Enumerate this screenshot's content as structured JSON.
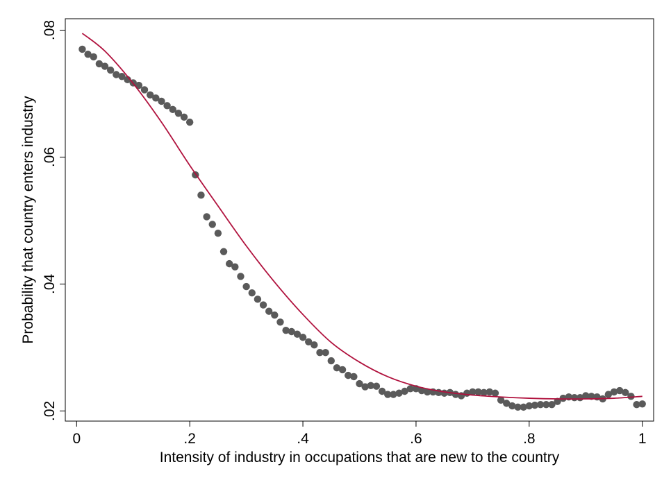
{
  "chart_data": {
    "type": "scatter",
    "title": "",
    "xlabel": "Intensity of industry in occupations that are new to the country",
    "ylabel": "Probability that country enters industry",
    "xlim": [
      -0.02,
      1.02
    ],
    "ylim": [
      0.0184,
      0.0818
    ],
    "x_ticks": [
      {
        "value": 0,
        "label": "0"
      },
      {
        "value": 0.2,
        "label": ".2"
      },
      {
        "value": 0.4,
        "label": ".4"
      },
      {
        "value": 0.6,
        "label": ".6"
      },
      {
        "value": 0.8,
        "label": ".8"
      },
      {
        "value": 1,
        "label": "1"
      }
    ],
    "y_ticks": [
      {
        "value": 0.02,
        "label": ".02"
      },
      {
        "value": 0.04,
        "label": ".04"
      },
      {
        "value": 0.06,
        "label": ".06"
      },
      {
        "value": 0.08,
        "label": ".08"
      }
    ],
    "grid": false,
    "legend": "none",
    "colors": {
      "points": "#5a5a5a",
      "fit_line": "#b0113d",
      "axis": "#000000"
    },
    "series": [
      {
        "kind": "points",
        "x": [
          0.01,
          0.02,
          0.03,
          0.04,
          0.05,
          0.06,
          0.07,
          0.08,
          0.09,
          0.1,
          0.11,
          0.12,
          0.13,
          0.14,
          0.15,
          0.16,
          0.17,
          0.18,
          0.19,
          0.2,
          0.21,
          0.22,
          0.23,
          0.24,
          0.25,
          0.26,
          0.27,
          0.28,
          0.29,
          0.3,
          0.31,
          0.32,
          0.33,
          0.34,
          0.35,
          0.36,
          0.37,
          0.38,
          0.39,
          0.4,
          0.41,
          0.42,
          0.43,
          0.44,
          0.45,
          0.46,
          0.47,
          0.48,
          0.49,
          0.5,
          0.51,
          0.52,
          0.53,
          0.54,
          0.55,
          0.56,
          0.57,
          0.58,
          0.59,
          0.6,
          0.61,
          0.62,
          0.63,
          0.64,
          0.65,
          0.66,
          0.67,
          0.68,
          0.69,
          0.7,
          0.71,
          0.72,
          0.73,
          0.74,
          0.75,
          0.76,
          0.77,
          0.78,
          0.79,
          0.8,
          0.81,
          0.82,
          0.83,
          0.84,
          0.85,
          0.86,
          0.87,
          0.88,
          0.89,
          0.9,
          0.91,
          0.92,
          0.93,
          0.94,
          0.95,
          0.96,
          0.97,
          0.98,
          0.99,
          1.0
        ],
        "y": [
          0.077,
          0.0762,
          0.0758,
          0.0747,
          0.0743,
          0.0737,
          0.073,
          0.0727,
          0.0722,
          0.0717,
          0.0713,
          0.0706,
          0.0698,
          0.0693,
          0.0688,
          0.0681,
          0.0675,
          0.0669,
          0.0663,
          0.0655,
          0.0572,
          0.054,
          0.0506,
          0.0494,
          0.048,
          0.0451,
          0.0432,
          0.0427,
          0.0412,
          0.0396,
          0.0386,
          0.0376,
          0.0367,
          0.0357,
          0.0351,
          0.034,
          0.0327,
          0.0325,
          0.0321,
          0.0316,
          0.0309,
          0.0304,
          0.0292,
          0.0292,
          0.0279,
          0.0268,
          0.0265,
          0.0256,
          0.0254,
          0.0243,
          0.0238,
          0.024,
          0.0239,
          0.0231,
          0.0226,
          0.0226,
          0.0228,
          0.0231,
          0.0235,
          0.0235,
          0.0232,
          0.023,
          0.023,
          0.0229,
          0.0228,
          0.0229,
          0.0226,
          0.0224,
          0.0228,
          0.023,
          0.023,
          0.0229,
          0.023,
          0.0228,
          0.0217,
          0.0212,
          0.0208,
          0.0206,
          0.0206,
          0.0208,
          0.0209,
          0.021,
          0.021,
          0.021,
          0.0215,
          0.022,
          0.0222,
          0.0221,
          0.0221,
          0.0224,
          0.0223,
          0.0222,
          0.0219,
          0.0226,
          0.023,
          0.0232,
          0.0229,
          0.0223,
          0.021,
          0.0211
        ]
      },
      {
        "kind": "fit-line",
        "x": [
          0.01,
          0.05,
          0.1,
          0.15,
          0.2,
          0.25,
          0.3,
          0.35,
          0.4,
          0.45,
          0.5,
          0.55,
          0.6,
          0.65,
          0.7,
          0.75,
          0.8,
          0.85,
          0.9,
          0.95,
          1.0
        ],
        "y": [
          0.0795,
          0.0767,
          0.0716,
          0.0655,
          0.0587,
          0.0523,
          0.046,
          0.0403,
          0.0352,
          0.0308,
          0.0277,
          0.0254,
          0.0239,
          0.023,
          0.0225,
          0.0222,
          0.022,
          0.0219,
          0.0219,
          0.022,
          0.0223
        ]
      }
    ]
  }
}
